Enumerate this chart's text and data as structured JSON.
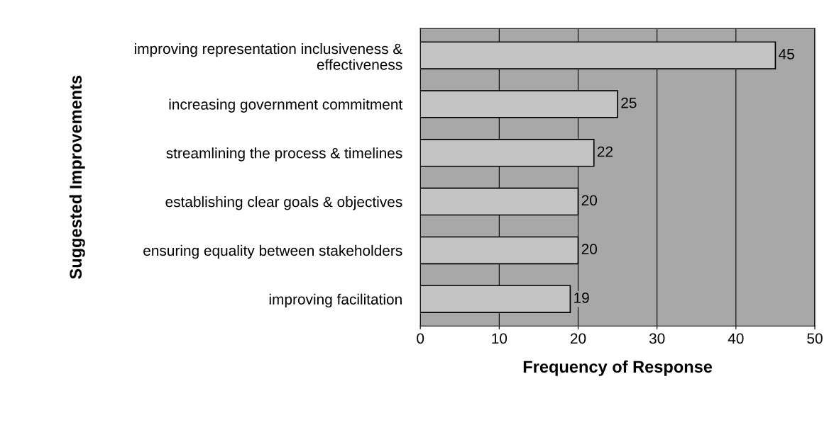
{
  "chart_data": {
    "type": "bar",
    "orientation": "horizontal",
    "xlabel": "Frequency of Response",
    "ylabel": "Suggested Improvements",
    "categories": [
      "improving representation inclusiveness &\neffectiveness",
      "increasing government commitment",
      "streamlining the process & timelines",
      "establishing clear goals & objectives",
      "ensuring equality between stakeholders",
      "improving facilitation"
    ],
    "values": [
      45,
      25,
      22,
      20,
      20,
      19
    ],
    "color": "#c4c4c4",
    "data_labels": true,
    "xlim": [
      0,
      50
    ],
    "xticks": [
      0,
      10,
      20,
      30,
      40,
      50
    ],
    "grid": "x",
    "legend": false
  }
}
